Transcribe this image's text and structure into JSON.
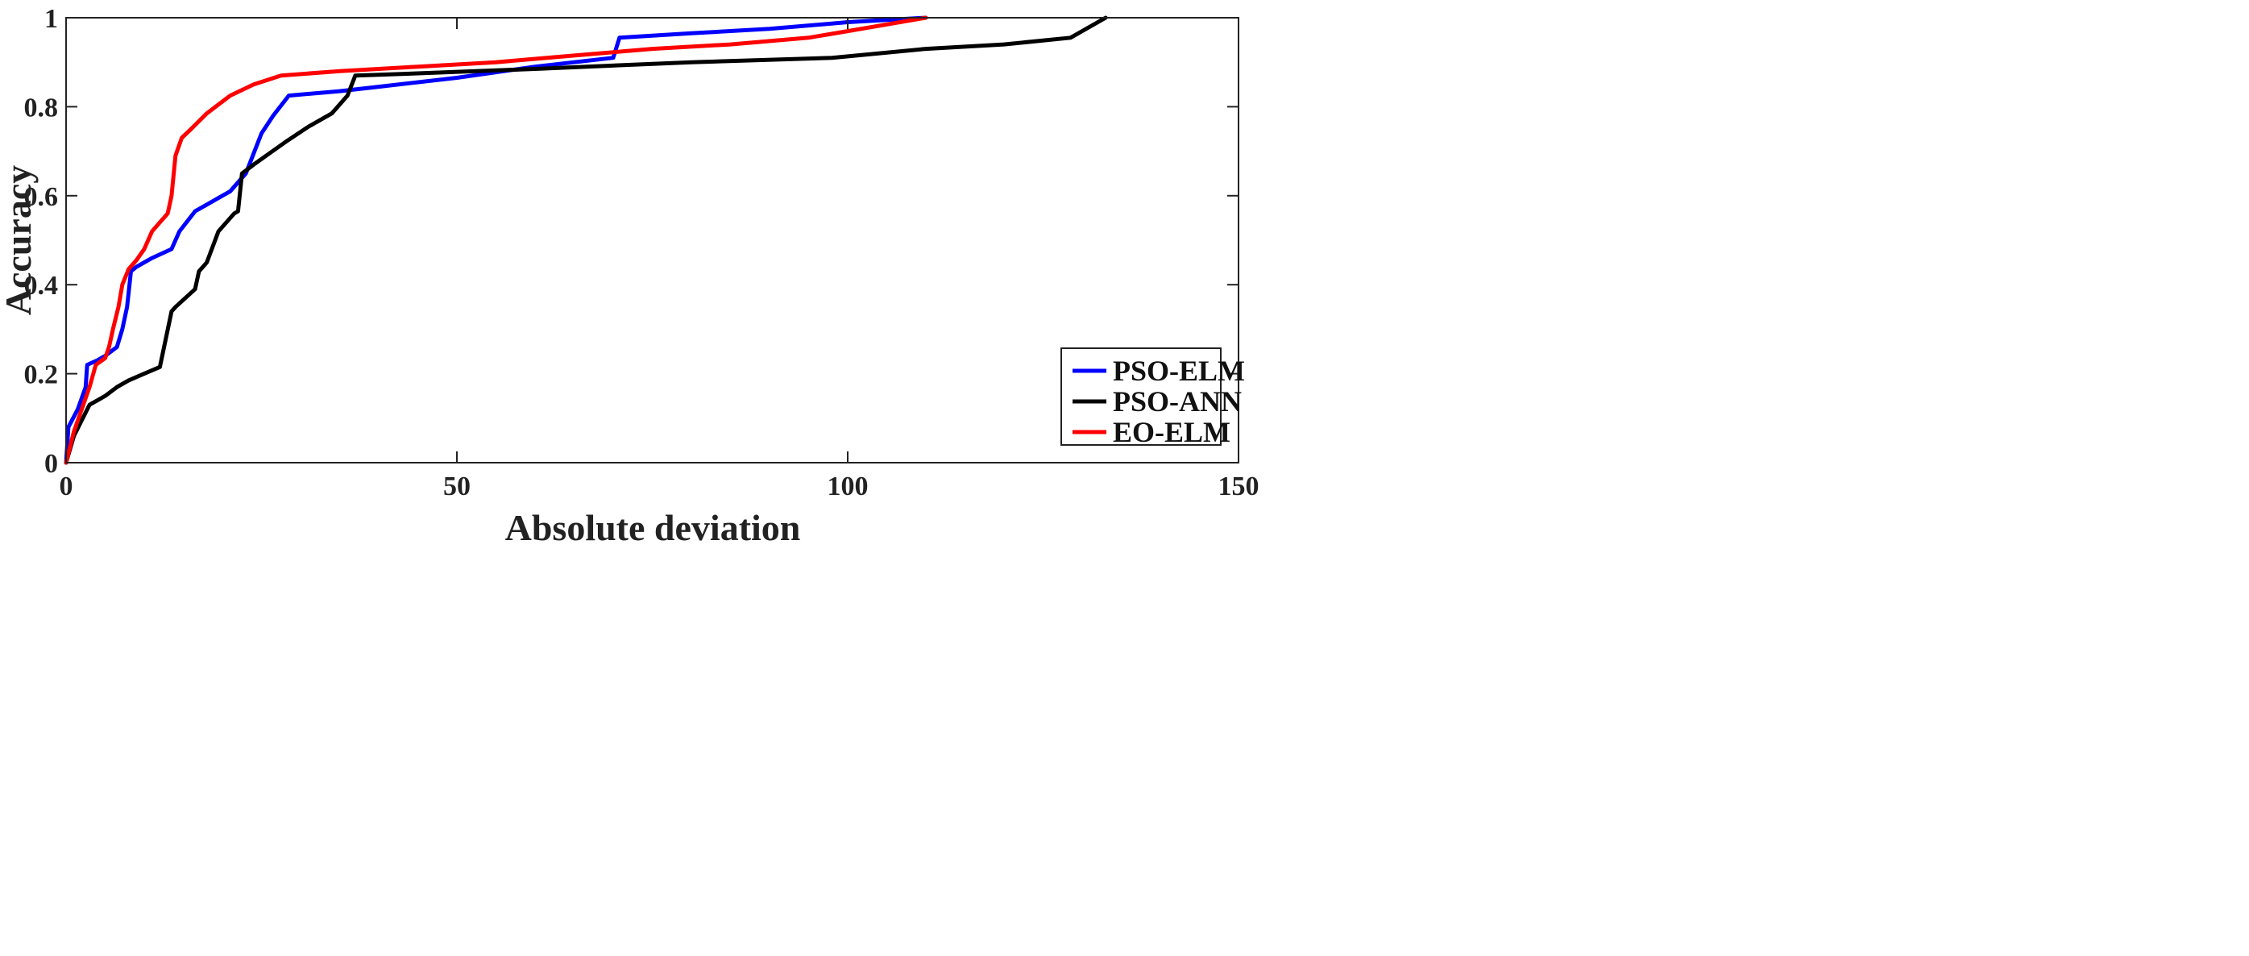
{
  "chart_data": {
    "type": "line",
    "xlabel": "Absolute deviation",
    "ylabel": "Accuracy",
    "xlim": [
      0,
      150
    ],
    "ylim": [
      0,
      1
    ],
    "x_ticks": [
      0,
      50,
      100,
      150
    ],
    "y_ticks": [
      0,
      0.2,
      0.4,
      0.6,
      0.8,
      1
    ],
    "x_tick_labels": [
      "0",
      "50",
      "100",
      "150"
    ],
    "y_tick_labels": [
      "0",
      "0.2",
      "0.4",
      "0.6",
      "0.8",
      "1"
    ],
    "grid": false,
    "legend_position": "bottom-right",
    "series": [
      {
        "name": "PSO-ELM",
        "color": "#0000ff",
        "points": [
          [
            0,
            0
          ],
          [
            0.3,
            0.08
          ],
          [
            1.5,
            0.12
          ],
          [
            2.5,
            0.17
          ],
          [
            2.7,
            0.22
          ],
          [
            4,
            0.23
          ],
          [
            5,
            0.24
          ],
          [
            6.5,
            0.26
          ],
          [
            7.2,
            0.3
          ],
          [
            7.8,
            0.35
          ],
          [
            8.3,
            0.43
          ],
          [
            9,
            0.44
          ],
          [
            11,
            0.46
          ],
          [
            13.5,
            0.48
          ],
          [
            14.5,
            0.52
          ],
          [
            16.5,
            0.565
          ],
          [
            18.5,
            0.585
          ],
          [
            21,
            0.61
          ],
          [
            23,
            0.65
          ],
          [
            25,
            0.74
          ],
          [
            26.5,
            0.78
          ],
          [
            28.5,
            0.825
          ],
          [
            35,
            0.835
          ],
          [
            40,
            0.845
          ],
          [
            50,
            0.865
          ],
          [
            60,
            0.89
          ],
          [
            70,
            0.91
          ],
          [
            70.8,
            0.955
          ],
          [
            80,
            0.965
          ],
          [
            90,
            0.975
          ],
          [
            100,
            0.99
          ],
          [
            110,
            1.0
          ]
        ]
      },
      {
        "name": "PSO-ANN",
        "color": "#000000",
        "points": [
          [
            0,
            0
          ],
          [
            1,
            0.06
          ],
          [
            3,
            0.13
          ],
          [
            5,
            0.15
          ],
          [
            6.5,
            0.17
          ],
          [
            8,
            0.185
          ],
          [
            10,
            0.2
          ],
          [
            12,
            0.215
          ],
          [
            13.5,
            0.34
          ],
          [
            14,
            0.35
          ],
          [
            16.5,
            0.39
          ],
          [
            17,
            0.43
          ],
          [
            18,
            0.45
          ],
          [
            19.5,
            0.52
          ],
          [
            21.5,
            0.56
          ],
          [
            22,
            0.565
          ],
          [
            22.5,
            0.65
          ],
          [
            24,
            0.67
          ],
          [
            26,
            0.695
          ],
          [
            28,
            0.72
          ],
          [
            31,
            0.755
          ],
          [
            34,
            0.785
          ],
          [
            36,
            0.825
          ],
          [
            37,
            0.87
          ],
          [
            45,
            0.875
          ],
          [
            60,
            0.885
          ],
          [
            80,
            0.9
          ],
          [
            98,
            0.91
          ],
          [
            110,
            0.93
          ],
          [
            120,
            0.94
          ],
          [
            128.5,
            0.955
          ],
          [
            133,
            1.0
          ]
        ]
      },
      {
        "name": "EO-ELM",
        "color": "#ff0000",
        "points": [
          [
            0,
            0
          ],
          [
            1,
            0.07
          ],
          [
            2,
            0.12
          ],
          [
            3,
            0.17
          ],
          [
            3.8,
            0.22
          ],
          [
            5,
            0.235
          ],
          [
            5.5,
            0.26
          ],
          [
            6,
            0.3
          ],
          [
            6.7,
            0.35
          ],
          [
            7.2,
            0.4
          ],
          [
            8,
            0.435
          ],
          [
            9,
            0.455
          ],
          [
            10,
            0.48
          ],
          [
            11,
            0.52
          ],
          [
            12,
            0.54
          ],
          [
            13,
            0.56
          ],
          [
            13.5,
            0.6
          ],
          [
            14,
            0.69
          ],
          [
            14.8,
            0.73
          ],
          [
            16,
            0.75
          ],
          [
            18,
            0.785
          ],
          [
            21,
            0.825
          ],
          [
            24,
            0.85
          ],
          [
            27.5,
            0.87
          ],
          [
            35,
            0.88
          ],
          [
            45,
            0.89
          ],
          [
            55,
            0.9
          ],
          [
            65,
            0.915
          ],
          [
            75,
            0.93
          ],
          [
            85,
            0.94
          ],
          [
            95,
            0.955
          ],
          [
            100,
            0.97
          ],
          [
            110,
            1.0
          ]
        ]
      }
    ]
  }
}
